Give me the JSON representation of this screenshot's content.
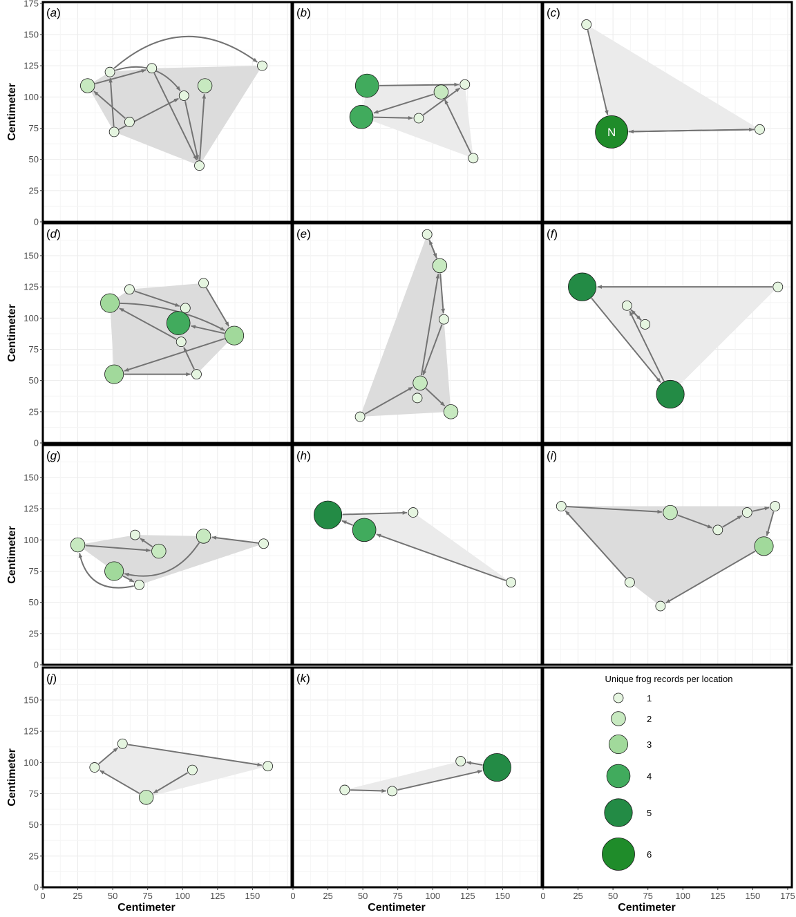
{
  "chart_data": {
    "type": "scatter",
    "description": "Small-multiple network plots of frog movement between locations; points sized and colored by unique frog records per location, arrows show movements, grey polygon is the convex hull.",
    "xlabel": "Centimeter",
    "ylabel": "Centimeter",
    "xlim": [
      0,
      178
    ],
    "ylim": [
      0,
      176
    ],
    "x_ticks": [
      0,
      25,
      50,
      75,
      100,
      125,
      150,
      175
    ],
    "y_ticks": [
      0,
      25,
      50,
      75,
      100,
      125,
      150,
      175
    ],
    "x_tick_labels": {
      "col1": [
        "0",
        "25",
        "50",
        "75",
        "100",
        "125",
        "150"
      ],
      "col2": [
        "0",
        "25",
        "50",
        "75",
        "100",
        "125",
        "150"
      ],
      "col3": [
        "0",
        "25",
        "50",
        "75",
        "100",
        "125",
        "150",
        "175"
      ]
    },
    "y_tick_labels": {
      "row1": [
        "0",
        "25",
        "50",
        "75",
        "100",
        "125",
        "150",
        "175"
      ],
      "other": [
        "0",
        "25",
        "50",
        "75",
        "100",
        "125",
        "150"
      ]
    },
    "legend": {
      "title": "Unique frog records per location",
      "entries": [
        {
          "label": "1",
          "count": 1,
          "color": "#e5f5e0"
        },
        {
          "label": "2",
          "count": 2,
          "color": "#c7e9c0"
        },
        {
          "label": "3",
          "count": 3,
          "color": "#a1d99b"
        },
        {
          "label": "4",
          "count": 4,
          "color": "#41ab5d"
        },
        {
          "label": "5",
          "count": 5,
          "color": "#238b45"
        },
        {
          "label": "6",
          "count": 6,
          "color": "#1f8c2a"
        }
      ]
    },
    "panels": [
      {
        "label": "(a)",
        "hull_shade": "dark",
        "nodes": [
          [
            32,
            109,
            2
          ],
          [
            48,
            120,
            1
          ],
          [
            51,
            72,
            1
          ],
          [
            62,
            80,
            1
          ],
          [
            78,
            123,
            1
          ],
          [
            101,
            101,
            1
          ],
          [
            116,
            109,
            2
          ],
          [
            112,
            45,
            1
          ],
          [
            157,
            125,
            1
          ]
        ],
        "edges": [
          [
            1,
            8,
            -0.4
          ],
          [
            2,
            1,
            0
          ],
          [
            2,
            5,
            0
          ],
          [
            1,
            5,
            -0.35
          ],
          [
            4,
            7,
            0
          ],
          [
            0,
            4,
            0
          ],
          [
            3,
            0,
            0
          ],
          [
            5,
            7,
            0
          ],
          [
            7,
            6,
            0
          ]
        ]
      },
      {
        "label": "(b)",
        "hull_shade": "light",
        "nodes": [
          [
            53,
            109,
            4
          ],
          [
            49,
            84,
            4
          ],
          [
            90,
            83,
            1
          ],
          [
            106,
            104,
            2
          ],
          [
            123,
            110,
            1
          ],
          [
            129,
            51,
            1
          ]
        ],
        "edges": [
          [
            0,
            4,
            0
          ],
          [
            2,
            4,
            0
          ],
          [
            3,
            1,
            0
          ],
          [
            1,
            2,
            0
          ],
          [
            5,
            3,
            0
          ]
        ]
      },
      {
        "label": "(c)",
        "hull_shade": "light",
        "nodes": [
          [
            31,
            158,
            1
          ],
          [
            49,
            72,
            6
          ],
          [
            155,
            74,
            1
          ]
        ],
        "edges": [
          [
            0,
            1,
            0
          ],
          [
            1,
            2,
            0
          ],
          [
            2,
            1,
            0
          ]
        ],
        "marker": {
          "node": 1,
          "text": "N"
        }
      },
      {
        "label": "(d)",
        "hull_shade": "dark",
        "nodes": [
          [
            48,
            112,
            3
          ],
          [
            62,
            123,
            1
          ],
          [
            102,
            108,
            1
          ],
          [
            97,
            96,
            4
          ],
          [
            99,
            81,
            1
          ],
          [
            115,
            128,
            1
          ],
          [
            137,
            86,
            3
          ],
          [
            51,
            55,
            3
          ],
          [
            110,
            55,
            1
          ]
        ],
        "edges": [
          [
            0,
            6,
            -0.12
          ],
          [
            1,
            2,
            0
          ],
          [
            5,
            6,
            0
          ],
          [
            6,
            3,
            0
          ],
          [
            4,
            0,
            0
          ],
          [
            6,
            7,
            0
          ],
          [
            7,
            8,
            0
          ],
          [
            8,
            4,
            0
          ]
        ]
      },
      {
        "label": "(e)",
        "hull_shade": "dark",
        "nodes": [
          [
            96,
            167,
            1
          ],
          [
            105,
            142,
            2
          ],
          [
            108,
            99,
            1
          ],
          [
            91,
            48,
            2
          ],
          [
            89,
            36,
            1
          ],
          [
            48,
            21,
            1
          ],
          [
            113,
            25,
            2
          ]
        ],
        "edges": [
          [
            0,
            1,
            0
          ],
          [
            1,
            0,
            0
          ],
          [
            1,
            2,
            0
          ],
          [
            2,
            3,
            0
          ],
          [
            3,
            1,
            0
          ],
          [
            5,
            3,
            0
          ],
          [
            3,
            6,
            0
          ]
        ]
      },
      {
        "label": "(f)",
        "hull_shade": "light",
        "nodes": [
          [
            28,
            125,
            5
          ],
          [
            168,
            125,
            1
          ],
          [
            60,
            110,
            1
          ],
          [
            73,
            95,
            1
          ],
          [
            91,
            39,
            5
          ]
        ],
        "edges": [
          [
            1,
            0,
            0
          ],
          [
            0,
            4,
            0
          ],
          [
            4,
            2,
            0
          ],
          [
            2,
            3,
            0
          ],
          [
            3,
            2,
            0
          ]
        ]
      },
      {
        "label": "(g)",
        "hull_shade": "dark",
        "nodes": [
          [
            25,
            96,
            2
          ],
          [
            66,
            104,
            1
          ],
          [
            83,
            91,
            2
          ],
          [
            115,
            103,
            2
          ],
          [
            158,
            97,
            1
          ],
          [
            51,
            75,
            3
          ],
          [
            69,
            64,
            1
          ]
        ],
        "edges": [
          [
            4,
            3,
            0
          ],
          [
            0,
            2,
            0
          ],
          [
            2,
            1,
            0
          ],
          [
            3,
            5,
            -0.35
          ],
          [
            5,
            6,
            0
          ],
          [
            6,
            0,
            -0.5
          ]
        ]
      },
      {
        "label": "(h)",
        "hull_shade": "light",
        "nodes": [
          [
            25,
            120,
            5
          ],
          [
            86,
            122,
            1
          ],
          [
            51,
            108,
            4
          ],
          [
            156,
            66,
            1
          ]
        ],
        "edges": [
          [
            0,
            1,
            0
          ],
          [
            2,
            0,
            0
          ],
          [
            3,
            2,
            0
          ]
        ]
      },
      {
        "label": "(i)",
        "hull_shade": "dark",
        "nodes": [
          [
            13,
            127,
            1
          ],
          [
            91,
            122,
            2
          ],
          [
            125,
            108,
            1
          ],
          [
            146,
            122,
            1
          ],
          [
            166,
            127,
            1
          ],
          [
            158,
            95,
            3
          ],
          [
            62,
            66,
            1
          ],
          [
            84,
            47,
            1
          ]
        ],
        "edges": [
          [
            0,
            1,
            0
          ],
          [
            1,
            2,
            0
          ],
          [
            2,
            3,
            0
          ],
          [
            3,
            4,
            0
          ],
          [
            4,
            5,
            0
          ],
          [
            5,
            7,
            0
          ],
          [
            6,
            0,
            0
          ]
        ]
      },
      {
        "label": "(j)",
        "hull_shade": "light",
        "nodes": [
          [
            37,
            96,
            1
          ],
          [
            57,
            115,
            1
          ],
          [
            107,
            94,
            1
          ],
          [
            74,
            72,
            2
          ],
          [
            161,
            97,
            1
          ]
        ],
        "edges": [
          [
            0,
            1,
            0
          ],
          [
            1,
            4,
            0
          ],
          [
            3,
            0,
            0
          ],
          [
            2,
            3,
            0
          ]
        ]
      },
      {
        "label": "(k)",
        "hull_shade": "light",
        "nodes": [
          [
            37,
            78,
            1
          ],
          [
            71,
            77,
            1
          ],
          [
            120,
            101,
            1
          ],
          [
            146,
            96,
            5
          ]
        ],
        "edges": [
          [
            0,
            1,
            0
          ],
          [
            1,
            3,
            0
          ],
          [
            3,
            2,
            0
          ]
        ]
      }
    ]
  }
}
